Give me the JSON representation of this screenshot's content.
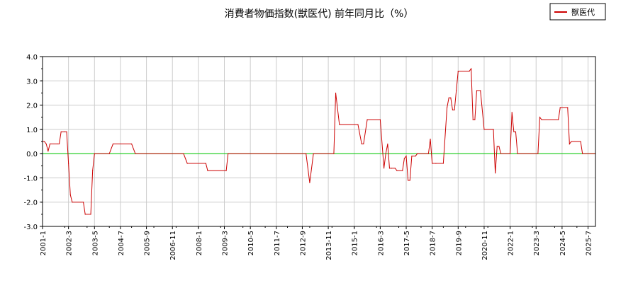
{
  "chart_data": {
    "type": "line",
    "title": "消費者物価指数(獣医代) 前年同月比（%）",
    "xlabel": "",
    "ylabel": "",
    "ylim": [
      -3.0,
      4.0
    ],
    "yticks": [
      "4.0",
      "3.0",
      "2.0",
      "1.0",
      "0.0",
      "-1.0",
      "-2.0",
      "-3.0"
    ],
    "xlim": [
      "2001-01",
      "2025-11"
    ],
    "xticks": [
      "2001-1",
      "2002-3",
      "2003-5",
      "2004-7",
      "2005-9",
      "2006-11",
      "2008-1",
      "2009-3",
      "2010-5",
      "2011-7",
      "2012-9",
      "2013-11",
      "2015-1",
      "2016-3",
      "2017-5",
      "2018-7",
      "2019-9",
      "2020-11",
      "2022-1",
      "2023-3",
      "2024-5",
      "2025-7"
    ],
    "grid": true,
    "legend": {
      "position": "top-right",
      "entries": [
        "獣医代"
      ]
    },
    "zero_line_color": "#00cc00",
    "series": [
      {
        "name": "獣医代",
        "color": "#cc0000",
        "points": [
          [
            "2001-01",
            0.5
          ],
          [
            "2001-02",
            0.5
          ],
          [
            "2001-03",
            0.4
          ],
          [
            "2001-04",
            0.1
          ],
          [
            "2001-05",
            0.4
          ],
          [
            "2001-09",
            0.4
          ],
          [
            "2001-10",
            0.4
          ],
          [
            "2001-11",
            0.9
          ],
          [
            "2002-01",
            0.9
          ],
          [
            "2002-02",
            0.9
          ],
          [
            "2002-03",
            -0.4
          ],
          [
            "2002-04",
            -1.7
          ],
          [
            "2002-05",
            -2.0
          ],
          [
            "2002-11",
            -2.0
          ],
          [
            "2002-12",
            -2.5
          ],
          [
            "2003-03",
            -2.5
          ],
          [
            "2003-04",
            -0.7
          ],
          [
            "2003-05",
            0.0
          ],
          [
            "2004-01",
            0.0
          ],
          [
            "2004-03",
            0.4
          ],
          [
            "2005-01",
            0.4
          ],
          [
            "2005-03",
            0.0
          ],
          [
            "2007-05",
            0.0
          ],
          [
            "2007-07",
            -0.4
          ],
          [
            "2008-05",
            -0.4
          ],
          [
            "2008-06",
            -0.7
          ],
          [
            "2009-04",
            -0.7
          ],
          [
            "2009-05",
            0.0
          ],
          [
            "2012-11",
            0.0
          ],
          [
            "2013-01",
            -1.2
          ],
          [
            "2013-03",
            0.0
          ],
          [
            "2014-02",
            0.0
          ],
          [
            "2014-03",
            2.5
          ],
          [
            "2014-05",
            1.2
          ],
          [
            "2015-03",
            1.2
          ],
          [
            "2015-05",
            0.4
          ],
          [
            "2015-06",
            0.4
          ],
          [
            "2015-08",
            1.4
          ],
          [
            "2016-03",
            1.4
          ],
          [
            "2016-05",
            -0.6
          ],
          [
            "2016-06",
            0.0
          ],
          [
            "2016-07",
            0.4
          ],
          [
            "2016-08",
            -0.6
          ],
          [
            "2016-09",
            -0.6
          ],
          [
            "2016-11",
            -0.6
          ],
          [
            "2016-12",
            -0.7
          ],
          [
            "2017-03",
            -0.7
          ],
          [
            "2017-04",
            -0.2
          ],
          [
            "2017-05",
            -0.1
          ],
          [
            "2017-06",
            -1.1
          ],
          [
            "2017-07",
            -1.1
          ],
          [
            "2017-08",
            -0.1
          ],
          [
            "2017-10",
            -0.1
          ],
          [
            "2017-11",
            0.0
          ],
          [
            "2018-05",
            0.0
          ],
          [
            "2018-06",
            0.6
          ],
          [
            "2018-07",
            -0.4
          ],
          [
            "2018-09",
            -0.4
          ],
          [
            "2019-01",
            -0.4
          ],
          [
            "2019-03",
            1.9
          ],
          [
            "2019-04",
            2.3
          ],
          [
            "2019-05",
            2.3
          ],
          [
            "2019-06",
            1.8
          ],
          [
            "2019-07",
            1.8
          ],
          [
            "2019-08",
            2.6
          ],
          [
            "2019-09",
            3.4
          ],
          [
            "2020-03",
            3.4
          ],
          [
            "2020-04",
            3.5
          ],
          [
            "2020-05",
            1.4
          ],
          [
            "2020-06",
            1.4
          ],
          [
            "2020-07",
            2.6
          ],
          [
            "2020-09",
            2.6
          ],
          [
            "2020-11",
            1.0
          ],
          [
            "2021-04",
            1.0
          ],
          [
            "2021-05",
            -0.8
          ],
          [
            "2021-06",
            0.3
          ],
          [
            "2021-07",
            0.3
          ],
          [
            "2021-08",
            0.0
          ],
          [
            "2022-01",
            0.0
          ],
          [
            "2022-02",
            1.7
          ],
          [
            "2022-03",
            0.9
          ],
          [
            "2022-04",
            0.9
          ],
          [
            "2022-05",
            0.0
          ],
          [
            "2023-04",
            0.0
          ],
          [
            "2023-05",
            1.5
          ],
          [
            "2023-06",
            1.4
          ],
          [
            "2024-03",
            1.4
          ],
          [
            "2024-04",
            1.9
          ],
          [
            "2024-08",
            1.9
          ],
          [
            "2024-09",
            0.4
          ],
          [
            "2024-10",
            0.5
          ],
          [
            "2025-03",
            0.5
          ],
          [
            "2025-04",
            0.0
          ],
          [
            "2025-11",
            0.0
          ]
        ]
      }
    ]
  }
}
